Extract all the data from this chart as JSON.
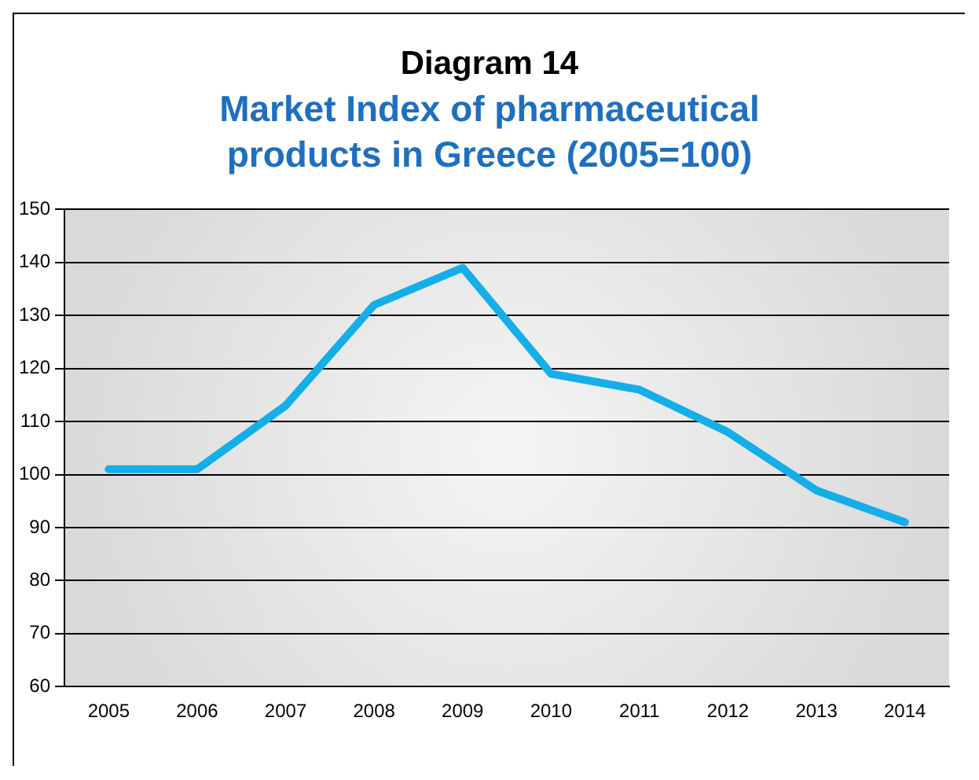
{
  "chart_data": {
    "type": "line",
    "title": "Diagram 14",
    "subtitle": "Market Index of pharmaceutical products in Greece (2005=100)",
    "categories": [
      "2005",
      "2006",
      "2007",
      "2008",
      "2009",
      "2010",
      "2011",
      "2012",
      "2013",
      "2014"
    ],
    "series": [
      {
        "color": "#14aee8",
        "values": [
          101,
          101,
          113,
          132,
          139,
          119,
          116,
          108,
          97,
          91
        ]
      }
    ],
    "ylim": [
      60,
      150
    ],
    "yticks": [
      60,
      70,
      80,
      90,
      100,
      110,
      120,
      130,
      140,
      150
    ],
    "grid": "y",
    "legend": false,
    "marker": "none",
    "line_style": "solid"
  }
}
